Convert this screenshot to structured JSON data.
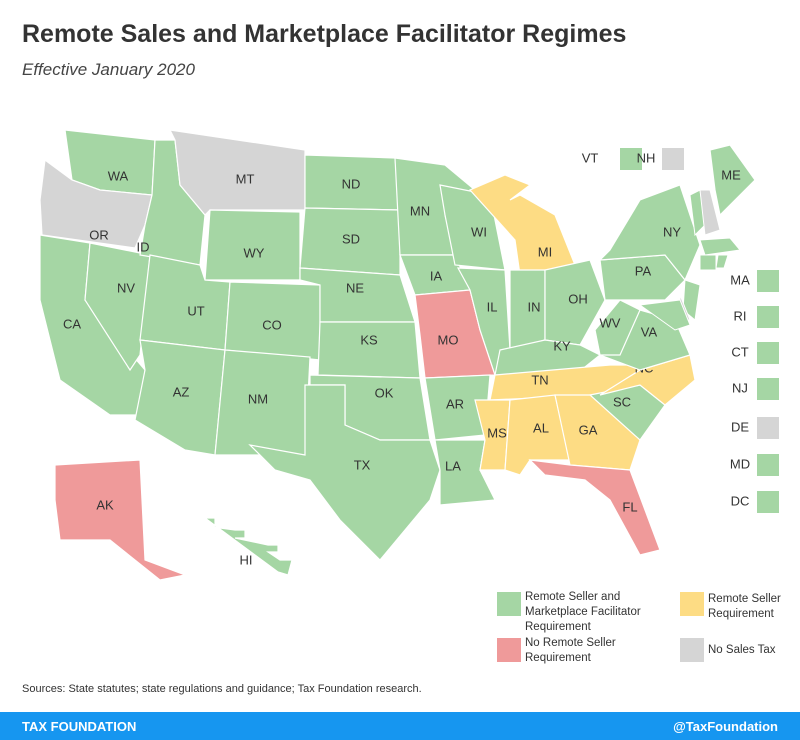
{
  "header": {
    "title": "Remote Sales and Marketplace Facilitator Regimes",
    "subtitle": "Effective January 2020"
  },
  "map": {
    "states": [
      {
        "label": "WA",
        "color": "#a5d6a4"
      },
      {
        "label": "OR",
        "color": "#d5d5d5"
      },
      {
        "label": "CA",
        "color": "#a5d6a4"
      },
      {
        "label": "NV",
        "color": "#a5d6a4"
      },
      {
        "label": "ID",
        "color": "#a5d6a4"
      },
      {
        "label": "MT",
        "color": "#d5d5d5"
      },
      {
        "label": "WY",
        "color": "#a5d6a4"
      },
      {
        "label": "UT",
        "color": "#a5d6a4"
      },
      {
        "label": "CO",
        "color": "#a5d6a4"
      },
      {
        "label": "AZ",
        "color": "#a5d6a4"
      },
      {
        "label": "NM",
        "color": "#a5d6a4"
      },
      {
        "label": "ND",
        "color": "#a5d6a4"
      },
      {
        "label": "SD",
        "color": "#a5d6a4"
      },
      {
        "label": "NE",
        "color": "#a5d6a4"
      },
      {
        "label": "KS",
        "color": "#a5d6a4"
      },
      {
        "label": "OK",
        "color": "#a5d6a4"
      },
      {
        "label": "TX",
        "color": "#a5d6a4"
      },
      {
        "label": "MN",
        "color": "#a5d6a4"
      },
      {
        "label": "IA",
        "color": "#a5d6a4"
      },
      {
        "label": "MO",
        "color": "#ef9a9a"
      },
      {
        "label": "AR",
        "color": "#a5d6a4"
      },
      {
        "label": "LA",
        "color": "#a5d6a4"
      },
      {
        "label": "WI",
        "color": "#a5d6a4"
      },
      {
        "label": "IL",
        "color": "#a5d6a4"
      },
      {
        "label": "MI",
        "color": "#fddc84"
      },
      {
        "label": "IN",
        "color": "#a5d6a4"
      },
      {
        "label": "OH",
        "color": "#a5d6a4"
      },
      {
        "label": "KY",
        "color": "#a5d6a4"
      },
      {
        "label": "TN",
        "color": "#fddc84"
      },
      {
        "label": "MS",
        "color": "#fddc84"
      },
      {
        "label": "AL",
        "color": "#fddc84"
      },
      {
        "label": "GA",
        "color": "#fddc84"
      },
      {
        "label": "FL",
        "color": "#ef9a9a"
      },
      {
        "label": "SC",
        "color": "#a5d6a4"
      },
      {
        "label": "NC",
        "color": "#fddc84"
      },
      {
        "label": "VA",
        "color": "#a5d6a4"
      },
      {
        "label": "WV",
        "color": "#a5d6a4"
      },
      {
        "label": "PA",
        "color": "#a5d6a4"
      },
      {
        "label": "NY",
        "color": "#a5d6a4"
      },
      {
        "label": "ME",
        "color": "#a5d6a4"
      },
      {
        "label": "AK",
        "color": "#ef9a9a"
      },
      {
        "label": "HI",
        "color": "#a5d6a4"
      }
    ],
    "small_states": [
      {
        "label": "VT",
        "color": "#a5d6a4"
      },
      {
        "label": "NH",
        "color": "#d5d5d5"
      },
      {
        "label": "MA",
        "color": "#a5d6a4"
      },
      {
        "label": "RI",
        "color": "#a5d6a4"
      },
      {
        "label": "CT",
        "color": "#a5d6a4"
      },
      {
        "label": "NJ",
        "color": "#a5d6a4"
      },
      {
        "label": "DE",
        "color": "#d5d5d5"
      },
      {
        "label": "MD",
        "color": "#a5d6a4"
      },
      {
        "label": "DC",
        "color": "#a5d6a4"
      }
    ]
  },
  "legend": [
    {
      "label": "Remote Seller and Marketplace Facilitator Requirement",
      "color": "#a5d6a4"
    },
    {
      "label": "Remote Seller Requirement",
      "color": "#fddc84"
    },
    {
      "label": "No Remote Seller Requirement",
      "color": "#ef9a9a"
    },
    {
      "label": "No Sales Tax",
      "color": "#d5d5d5"
    }
  ],
  "source": "Sources: State statutes; state regulations and guidance; Tax Foundation research.",
  "footer": {
    "left": "TAX FOUNDATION",
    "right": "@TaxFoundation"
  }
}
